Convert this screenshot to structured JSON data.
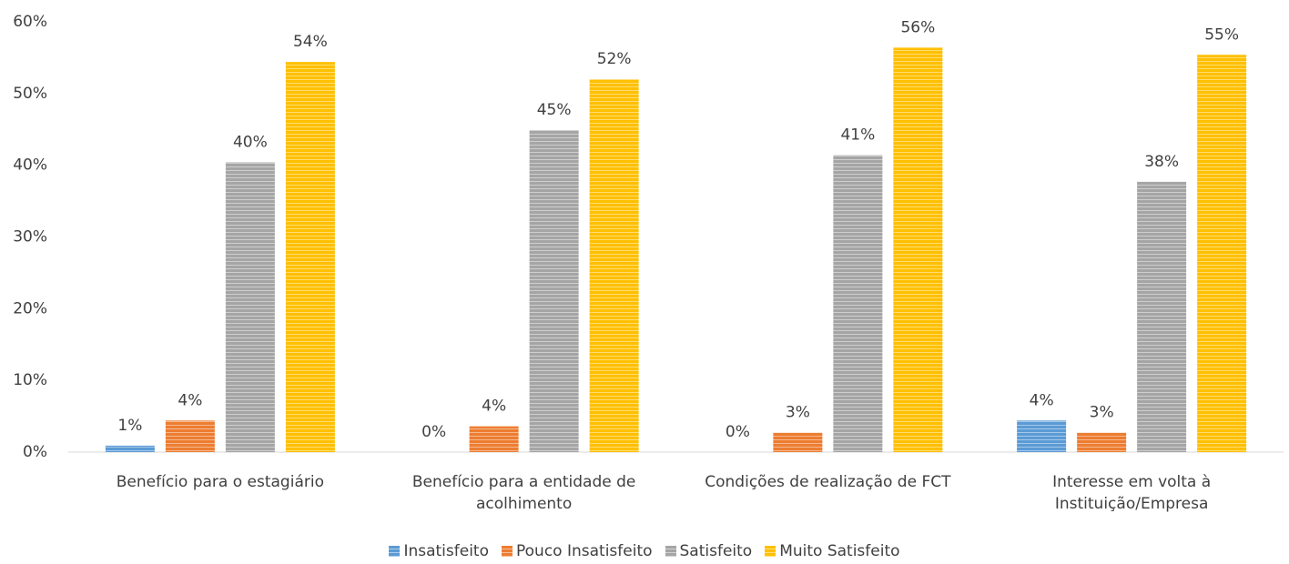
{
  "chart_data": {
    "type": "bar",
    "categories": [
      "Benefício para o estagiário",
      "Benefício para a entidade de acolhimento",
      "Condições de realização de FCT",
      "Interesse em volta à Instituição/Empresa"
    ],
    "series": [
      {
        "name": "Insatisfeito",
        "color": "#5b9bd5",
        "values": [
          0.9,
          0,
          0,
          4.4
        ],
        "value_labels": [
          "1%",
          "0%",
          "0%",
          "4%"
        ]
      },
      {
        "name": "Pouco Insatisfeito",
        "color": "#ed7d31",
        "values": [
          4.4,
          3.6,
          2.7,
          2.7
        ],
        "value_labels": [
          "4%",
          "4%",
          "3%",
          "3%"
        ]
      },
      {
        "name": "Satisfeito",
        "color": "#a5a5a5",
        "values": [
          40.4,
          44.9,
          41.4,
          37.7
        ],
        "value_labels": [
          "40%",
          "45%",
          "41%",
          "38%"
        ]
      },
      {
        "name": "Muito Satisfeito",
        "color": "#ffc000",
        "values": [
          54.4,
          52.0,
          56.4,
          55.4
        ],
        "value_labels": [
          "54%",
          "52%",
          "56%",
          "55%"
        ]
      }
    ],
    "ylim": [
      0,
      60
    ],
    "yticks": [
      {
        "value": 0,
        "label": "0%"
      },
      {
        "value": 10,
        "label": "10%"
      },
      {
        "value": 20,
        "label": "20%"
      },
      {
        "value": 30,
        "label": "30%"
      },
      {
        "value": 40,
        "label": "40%"
      },
      {
        "value": 50,
        "label": "50%"
      },
      {
        "value": 60,
        "label": "60%"
      }
    ],
    "grid": false,
    "legend": "bottom"
  }
}
